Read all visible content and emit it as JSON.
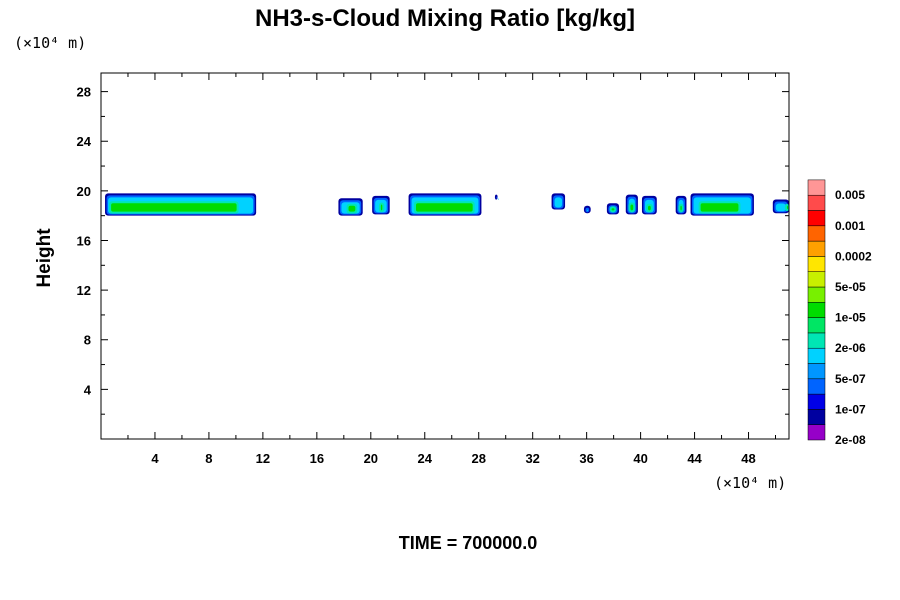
{
  "chart_data": {
    "type": "heatmap",
    "title": "NH3-s-Cloud Mixing Ratio [kg/kg]",
    "ylabel": "Height",
    "x_unit": "(×10⁴ m)",
    "y_unit": "(×10⁴ m)",
    "xlim": [
      0,
      51
    ],
    "ylim": [
      0,
      29.5
    ],
    "x_ticks": [
      4,
      8,
      12,
      16,
      20,
      24,
      28,
      32,
      36,
      40,
      44,
      48
    ],
    "y_ticks": [
      4,
      8,
      12,
      16,
      20,
      24,
      28
    ],
    "grid": false,
    "legend": {
      "placement": "right",
      "labels": [
        "0.005",
        "0.001",
        "0.0002",
        "5e-05",
        "1e-05",
        "2e-06",
        "5e-07",
        "1e-07",
        "2e-08"
      ],
      "colors": [
        "#9600c8",
        "#0000a0",
        "#0000e6",
        "#0064ff",
        "#0096ff",
        "#00d2ff",
        "#00e6b4",
        "#00e664",
        "#00dc00",
        "#78f000",
        "#c8f000",
        "#ffe600",
        "#ffa000",
        "#ff6400",
        "#ff0000",
        "#ff4b4b",
        "#ff9696"
      ]
    },
    "cloud_segments": [
      {
        "x0": 0.3,
        "x1": 11.5,
        "bottom": 18.0,
        "top": 19.8,
        "core_x0": 0.6,
        "core_x1": 10.2,
        "core_top": 19.0
      },
      {
        "x0": 17.6,
        "x1": 19.4,
        "bottom": 18.0,
        "top": 19.4,
        "core_x0": 18.2,
        "core_x1": 19.0,
        "core_top": 18.8
      },
      {
        "x0": 20.1,
        "x1": 21.4,
        "bottom": 18.1,
        "top": 19.6,
        "core_x0": 20.6,
        "core_x1": 21.0,
        "core_top": 18.9
      },
      {
        "x0": 22.8,
        "x1": 28.2,
        "bottom": 18.0,
        "top": 19.8,
        "core_x0": 23.2,
        "core_x1": 27.7,
        "core_top": 19.0
      },
      {
        "x0": 29.2,
        "x1": 29.4,
        "bottom": 19.3,
        "top": 19.7,
        "core_x0": 0,
        "core_x1": 0,
        "core_top": 0
      },
      {
        "x0": 33.4,
        "x1": 34.4,
        "bottom": 18.5,
        "top": 19.8,
        "core_x0": 0,
        "core_x1": 0,
        "core_top": 0
      },
      {
        "x0": 35.8,
        "x1": 36.3,
        "bottom": 18.2,
        "top": 18.8,
        "core_x0": 0,
        "core_x1": 0,
        "core_top": 0
      },
      {
        "x0": 37.5,
        "x1": 38.4,
        "bottom": 18.1,
        "top": 19.0,
        "core_x0": 37.7,
        "core_x1": 38.2,
        "core_top": 18.6
      },
      {
        "x0": 38.9,
        "x1": 39.8,
        "bottom": 18.1,
        "top": 19.7,
        "core_x0": 39.1,
        "core_x1": 39.6,
        "core_top": 18.9
      },
      {
        "x0": 40.1,
        "x1": 41.2,
        "bottom": 18.1,
        "top": 19.6,
        "core_x0": 40.4,
        "core_x1": 40.9,
        "core_top": 18.8
      },
      {
        "x0": 42.6,
        "x1": 43.4,
        "bottom": 18.1,
        "top": 19.6,
        "core_x0": 42.8,
        "core_x1": 43.2,
        "core_top": 18.8
      },
      {
        "x0": 43.7,
        "x1": 48.4,
        "bottom": 18.0,
        "top": 19.8,
        "core_x0": 44.3,
        "core_x1": 47.4,
        "core_top": 19.0
      },
      {
        "x0": 49.8,
        "x1": 51.0,
        "bottom": 18.2,
        "top": 19.3,
        "core_x0": 50.7,
        "core_x1": 51.0,
        "core_top": 18.8
      }
    ]
  },
  "footer": {
    "time_label": "TIME = 700000.0"
  }
}
